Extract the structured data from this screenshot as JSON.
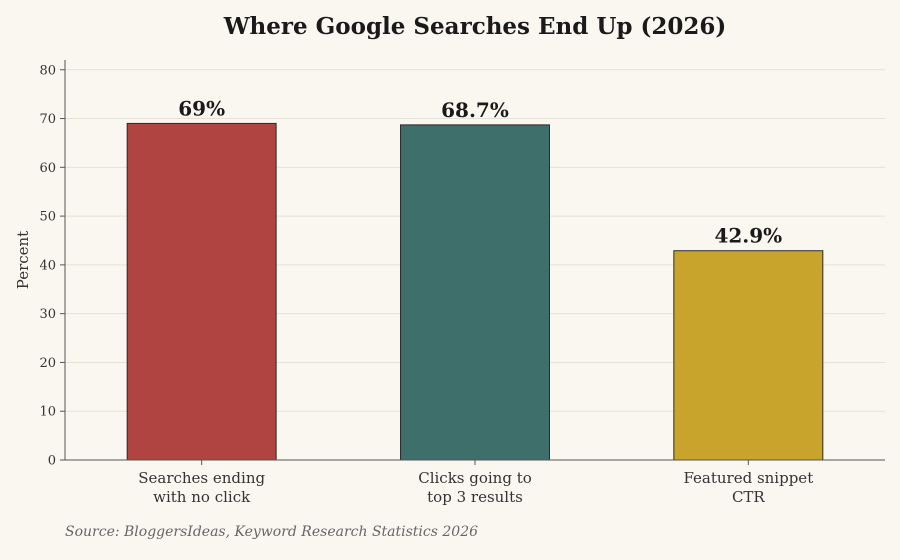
{
  "chart_data": {
    "type": "bar",
    "title": "Where Google Searches End Up (2026)",
    "ylabel": "Percent",
    "xlabel": "",
    "ylim": [
      0,
      82
    ],
    "yticks": [
      0,
      10,
      20,
      30,
      40,
      50,
      60,
      70,
      80
    ],
    "grid": true,
    "categories": [
      [
        "Searches ending",
        "with no click"
      ],
      [
        "Clicks going to",
        "top 3 results"
      ],
      [
        "Featured snippet",
        "CTR"
      ]
    ],
    "values": [
      69,
      68.7,
      42.9
    ],
    "value_labels": [
      "69%",
      "68.7%",
      "42.9%"
    ],
    "colors": [
      "#b04440",
      "#3e6f6a",
      "#c9a42c"
    ],
    "source": "Source: BloggersIdeas, Keyword Research Statistics 2026"
  }
}
